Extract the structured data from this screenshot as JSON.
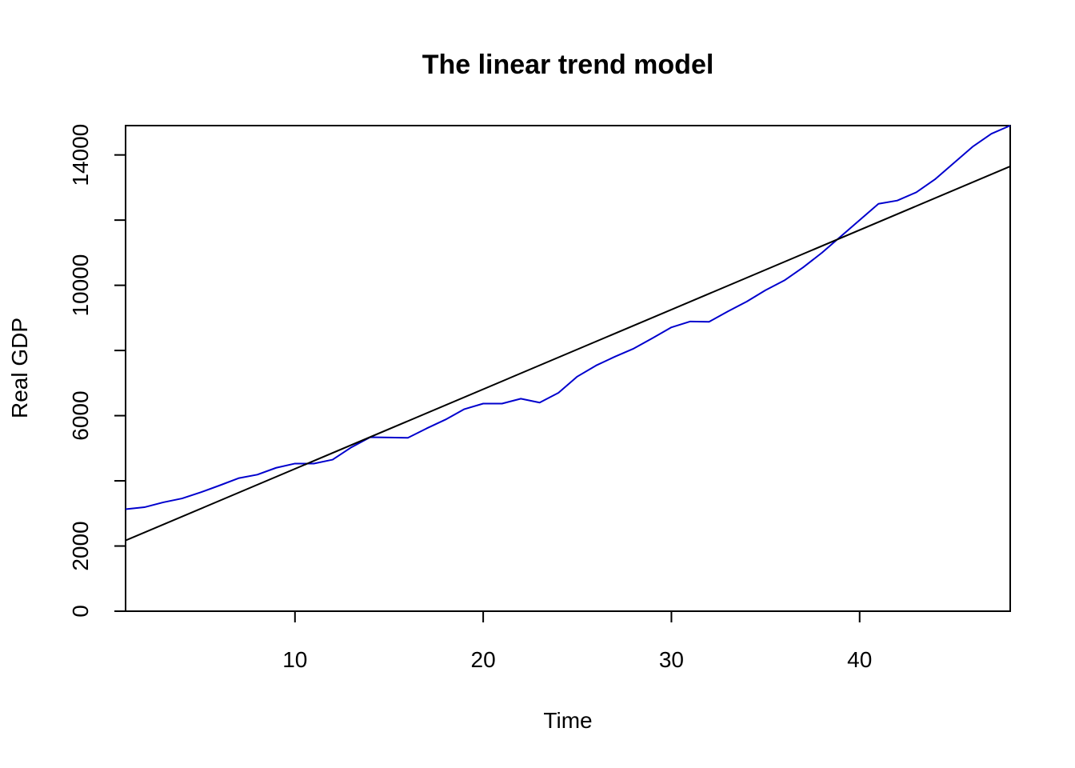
{
  "chart_data": {
    "type": "line",
    "title": "The linear trend model",
    "xlabel": "Time",
    "ylabel": "Real GDP",
    "xlim": [
      1,
      48
    ],
    "ylim": [
      0,
      14900
    ],
    "x_ticks": [
      10,
      20,
      30,
      40
    ],
    "y_ticks": [
      0,
      2000,
      4000,
      6000,
      8000,
      10000,
      12000,
      14000
    ],
    "y_tick_labels": [
      "0",
      "2000",
      "",
      "6000",
      "",
      "10000",
      "",
      "14000"
    ],
    "grid": false,
    "legend": "none",
    "series": [
      {
        "role": "observed",
        "color": "#0000cd",
        "x": [
          1,
          2,
          3,
          4,
          5,
          6,
          7,
          8,
          9,
          10,
          11,
          12,
          13,
          14,
          15,
          16,
          17,
          18,
          19,
          20,
          21,
          22,
          23,
          24,
          25,
          26,
          27,
          28,
          29,
          30,
          31,
          32,
          33,
          34,
          35,
          36,
          37,
          38,
          39,
          40,
          41,
          42,
          43,
          44,
          45,
          46,
          47,
          48
        ],
        "y": [
          3130,
          3190,
          3340,
          3460,
          3650,
          3860,
          4080,
          4190,
          4400,
          4530,
          4530,
          4650,
          5030,
          5340,
          5330,
          5320,
          5610,
          5880,
          6200,
          6370,
          6370,
          6520,
          6400,
          6700,
          7200,
          7540,
          7810,
          8060,
          8380,
          8710,
          8890,
          8880,
          9200,
          9500,
          9850,
          10150,
          10550,
          11000,
          11500,
          12000,
          12500,
          12600,
          12850,
          13250,
          13750,
          14250,
          14650,
          14900
        ]
      },
      {
        "role": "trend",
        "color": "#000000",
        "x": [
          1,
          48
        ],
        "y": [
          2170,
          13650
        ]
      }
    ]
  }
}
